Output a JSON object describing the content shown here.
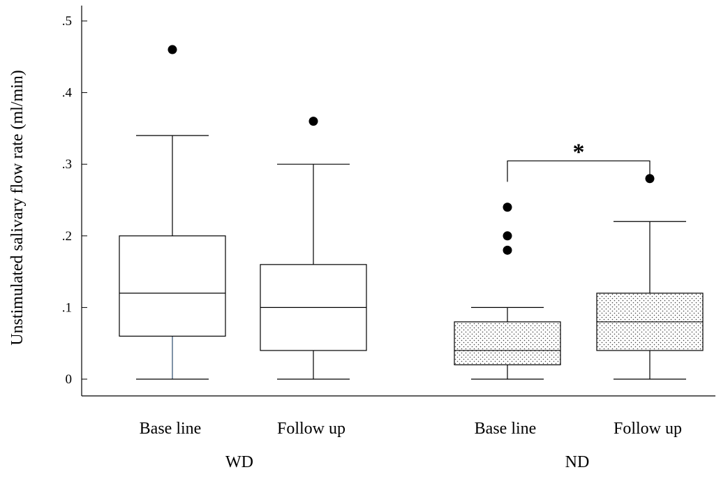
{
  "chart_data": {
    "type": "box",
    "ylabel": "Unstimulated salivary flow rate (ml/min)",
    "ylim": [
      -0.02,
      0.52
    ],
    "yticks": [
      {
        "value": 0,
        "label": "0"
      },
      {
        "value": 0.1,
        "label": ".1"
      },
      {
        "value": 0.2,
        "label": ".2"
      },
      {
        "value": 0.3,
        "label": ".3"
      },
      {
        "value": 0.4,
        "label": ".4"
      },
      {
        "value": 0.5,
        "label": ".5"
      }
    ],
    "grid": false,
    "groups": [
      {
        "label": "WD",
        "categories": [
          "Base line",
          "Follow up"
        ]
      },
      {
        "label": "ND",
        "categories": [
          "Base line",
          "Follow up"
        ]
      }
    ],
    "boxes": [
      {
        "group": "WD",
        "category": "Base line",
        "pattern": "none",
        "whisker_low": 0,
        "q1": 0.06,
        "median": 0.12,
        "q3": 0.2,
        "whisker_high": 0.34,
        "outliers": [
          0.46
        ]
      },
      {
        "group": "WD",
        "category": "Follow up",
        "pattern": "none",
        "whisker_low": 0,
        "q1": 0.04,
        "median": 0.1,
        "q3": 0.16,
        "whisker_high": 0.3,
        "outliers": [
          0.36
        ]
      },
      {
        "group": "ND",
        "category": "Base line",
        "pattern": "dotted",
        "whisker_low": 0,
        "q1": 0.02,
        "median": 0.04,
        "q3": 0.08,
        "whisker_high": 0.1,
        "outliers": [
          0.18,
          0.2,
          0.24
        ]
      },
      {
        "group": "ND",
        "category": "Follow up",
        "pattern": "dotted",
        "whisker_low": 0,
        "q1": 0.04,
        "median": 0.08,
        "q3": 0.12,
        "whisker_high": 0.22,
        "outliers": [
          0.28
        ]
      }
    ],
    "annotations": [
      {
        "type": "significance",
        "between": [
          2,
          3
        ],
        "y": 0.33,
        "label": "*"
      }
    ]
  }
}
